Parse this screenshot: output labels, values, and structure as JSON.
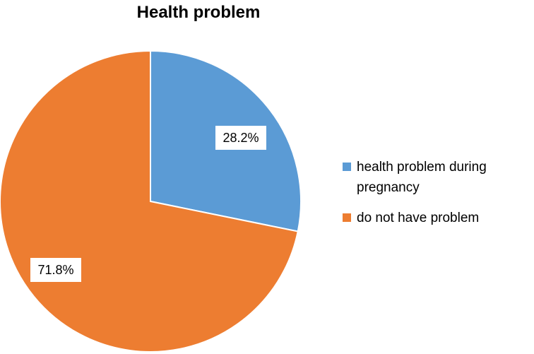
{
  "chart_data": {
    "type": "pie",
    "title": "Health problem",
    "categories": [
      "health problem during pregnancy",
      "do not have problem"
    ],
    "values": [
      28.2,
      71.8
    ],
    "value_labels": [
      "28.2%",
      "71.8%"
    ],
    "colors": [
      "#5B9BD5",
      "#ED7D31"
    ],
    "legend_position": "right",
    "legend_lines": [
      [
        "health problem during",
        "pregnancy"
      ],
      [
        "do not have problem"
      ]
    ],
    "start_angle": "12 o'clock",
    "direction": "clockwise"
  }
}
